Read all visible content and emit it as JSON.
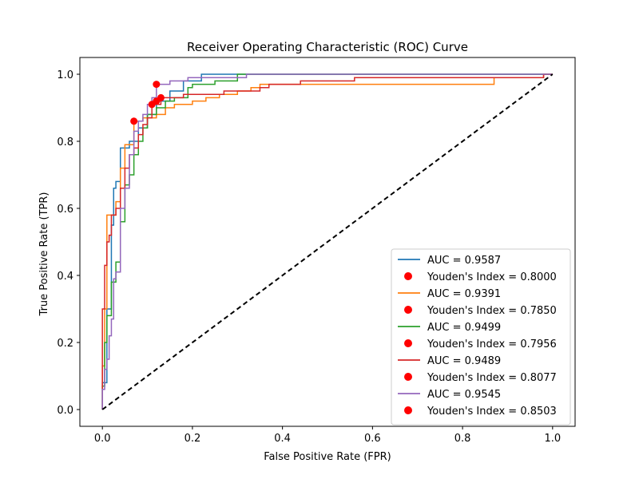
{
  "chart_data": {
    "type": "line",
    "title": "Receiver Operating Characteristic (ROC) Curve",
    "xlabel": "False Positive Rate (FPR)",
    "ylabel": "True Positive Rate (TPR)",
    "xlim": [
      -0.05,
      1.05
    ],
    "ylim": [
      -0.05,
      1.05
    ],
    "x_ticks": [
      0.0,
      0.2,
      0.4,
      0.6,
      0.8,
      1.0
    ],
    "y_ticks": [
      0.0,
      0.2,
      0.4,
      0.6,
      0.8,
      1.0
    ],
    "x_tick_labels": [
      "0.0",
      "0.2",
      "0.4",
      "0.6",
      "0.8",
      "1.0"
    ],
    "y_tick_labels": [
      "0.0",
      "0.2",
      "0.4",
      "0.6",
      "0.8",
      "1.0"
    ],
    "grid": false,
    "legend_position": "lower-right",
    "diagonal_color": "#000000",
    "marker_color": "#ff0000",
    "legend": [
      {
        "kind": "line",
        "color": "#1f77b4",
        "label": "AUC = 0.9587"
      },
      {
        "kind": "marker",
        "color": "#ff0000",
        "label": "Youden's Index = 0.8000"
      },
      {
        "kind": "line",
        "color": "#ff7f0e",
        "label": "AUC = 0.9391"
      },
      {
        "kind": "marker",
        "color": "#ff0000",
        "label": "Youden's Index = 0.7850"
      },
      {
        "kind": "line",
        "color": "#2ca02c",
        "label": "AUC = 0.9499"
      },
      {
        "kind": "marker",
        "color": "#ff0000",
        "label": "Youden's Index = 0.7956"
      },
      {
        "kind": "line",
        "color": "#d62728",
        "label": "AUC = 0.9489"
      },
      {
        "kind": "marker",
        "color": "#ff0000",
        "label": "Youden's Index = 0.8077"
      },
      {
        "kind": "line",
        "color": "#9467bd",
        "label": "AUC = 0.9545"
      },
      {
        "kind": "marker",
        "color": "#ff0000",
        "label": "Youden's Index = 0.8503"
      }
    ],
    "series": [
      {
        "color": "#1f77b4",
        "points": [
          [
            0,
            0
          ],
          [
            0,
            0.08
          ],
          [
            0.01,
            0.08
          ],
          [
            0.01,
            0.3
          ],
          [
            0.02,
            0.3
          ],
          [
            0.02,
            0.55
          ],
          [
            0.025,
            0.55
          ],
          [
            0.025,
            0.66
          ],
          [
            0.03,
            0.66
          ],
          [
            0.03,
            0.68
          ],
          [
            0.04,
            0.68
          ],
          [
            0.04,
            0.78
          ],
          [
            0.06,
            0.78
          ],
          [
            0.06,
            0.8
          ],
          [
            0.08,
            0.8
          ],
          [
            0.08,
            0.84
          ],
          [
            0.1,
            0.84
          ],
          [
            0.1,
            0.88
          ],
          [
            0.12,
            0.88
          ],
          [
            0.12,
            0.92
          ],
          [
            0.15,
            0.92
          ],
          [
            0.15,
            0.95
          ],
          [
            0.18,
            0.95
          ],
          [
            0.18,
            0.98
          ],
          [
            0.22,
            0.98
          ],
          [
            0.22,
            1.0
          ],
          [
            1.0,
            1.0
          ]
        ],
        "youden": [
          0.11,
          0.91
        ]
      },
      {
        "color": "#ff7f0e",
        "points": [
          [
            0,
            0
          ],
          [
            0,
            0.13
          ],
          [
            0.005,
            0.13
          ],
          [
            0.005,
            0.3
          ],
          [
            0.01,
            0.3
          ],
          [
            0.01,
            0.58
          ],
          [
            0.03,
            0.58
          ],
          [
            0.03,
            0.62
          ],
          [
            0.04,
            0.62
          ],
          [
            0.04,
            0.72
          ],
          [
            0.05,
            0.72
          ],
          [
            0.05,
            0.79
          ],
          [
            0.07,
            0.79
          ],
          [
            0.07,
            0.86
          ],
          [
            0.09,
            0.86
          ],
          [
            0.09,
            0.87
          ],
          [
            0.12,
            0.87
          ],
          [
            0.12,
            0.88
          ],
          [
            0.14,
            0.88
          ],
          [
            0.14,
            0.9
          ],
          [
            0.16,
            0.9
          ],
          [
            0.16,
            0.91
          ],
          [
            0.2,
            0.91
          ],
          [
            0.2,
            0.92
          ],
          [
            0.23,
            0.92
          ],
          [
            0.23,
            0.93
          ],
          [
            0.26,
            0.93
          ],
          [
            0.26,
            0.94
          ],
          [
            0.3,
            0.94
          ],
          [
            0.3,
            0.95
          ],
          [
            0.33,
            0.95
          ],
          [
            0.33,
            0.96
          ],
          [
            0.35,
            0.96
          ],
          [
            0.35,
            0.97
          ],
          [
            0.87,
            0.97
          ],
          [
            0.87,
            0.99
          ],
          [
            0.98,
            0.99
          ],
          [
            0.98,
            1.0
          ],
          [
            1.0,
            1.0
          ]
        ],
        "youden": [
          0.07,
          0.86
        ]
      },
      {
        "color": "#2ca02c",
        "points": [
          [
            0,
            0
          ],
          [
            0,
            0.07
          ],
          [
            0.005,
            0.07
          ],
          [
            0.005,
            0.2
          ],
          [
            0.01,
            0.2
          ],
          [
            0.01,
            0.28
          ],
          [
            0.02,
            0.28
          ],
          [
            0.02,
            0.38
          ],
          [
            0.03,
            0.38
          ],
          [
            0.03,
            0.44
          ],
          [
            0.04,
            0.44
          ],
          [
            0.04,
            0.56
          ],
          [
            0.05,
            0.56
          ],
          [
            0.05,
            0.67
          ],
          [
            0.06,
            0.67
          ],
          [
            0.06,
            0.7
          ],
          [
            0.07,
            0.7
          ],
          [
            0.07,
            0.76
          ],
          [
            0.08,
            0.76
          ],
          [
            0.08,
            0.8
          ],
          [
            0.09,
            0.8
          ],
          [
            0.09,
            0.84
          ],
          [
            0.1,
            0.84
          ],
          [
            0.1,
            0.88
          ],
          [
            0.12,
            0.88
          ],
          [
            0.12,
            0.9
          ],
          [
            0.14,
            0.9
          ],
          [
            0.14,
            0.92
          ],
          [
            0.16,
            0.92
          ],
          [
            0.16,
            0.93
          ],
          [
            0.19,
            0.93
          ],
          [
            0.19,
            0.96
          ],
          [
            0.2,
            0.96
          ],
          [
            0.2,
            0.97
          ],
          [
            0.25,
            0.97
          ],
          [
            0.25,
            0.98
          ],
          [
            0.3,
            0.98
          ],
          [
            0.3,
            1.0
          ],
          [
            1.0,
            1.0
          ]
        ],
        "youden": [
          0.12,
          0.92
        ]
      },
      {
        "color": "#d62728",
        "points": [
          [
            0,
            0
          ],
          [
            0,
            0.3
          ],
          [
            0.005,
            0.3
          ],
          [
            0.005,
            0.43
          ],
          [
            0.01,
            0.43
          ],
          [
            0.01,
            0.5
          ],
          [
            0.015,
            0.5
          ],
          [
            0.015,
            0.52
          ],
          [
            0.02,
            0.52
          ],
          [
            0.02,
            0.58
          ],
          [
            0.03,
            0.58
          ],
          [
            0.03,
            0.6
          ],
          [
            0.04,
            0.6
          ],
          [
            0.04,
            0.66
          ],
          [
            0.05,
            0.66
          ],
          [
            0.05,
            0.72
          ],
          [
            0.06,
            0.72
          ],
          [
            0.06,
            0.76
          ],
          [
            0.07,
            0.76
          ],
          [
            0.07,
            0.78
          ],
          [
            0.08,
            0.78
          ],
          [
            0.08,
            0.82
          ],
          [
            0.09,
            0.82
          ],
          [
            0.09,
            0.85
          ],
          [
            0.1,
            0.85
          ],
          [
            0.1,
            0.87
          ],
          [
            0.11,
            0.87
          ],
          [
            0.11,
            0.91
          ],
          [
            0.13,
            0.91
          ],
          [
            0.13,
            0.93
          ],
          [
            0.18,
            0.93
          ],
          [
            0.18,
            0.94
          ],
          [
            0.27,
            0.94
          ],
          [
            0.27,
            0.95
          ],
          [
            0.35,
            0.95
          ],
          [
            0.35,
            0.96
          ],
          [
            0.37,
            0.96
          ],
          [
            0.37,
            0.97
          ],
          [
            0.44,
            0.97
          ],
          [
            0.44,
            0.98
          ],
          [
            0.56,
            0.98
          ],
          [
            0.56,
            0.99
          ],
          [
            0.98,
            0.99
          ],
          [
            0.98,
            1.0
          ],
          [
            1.0,
            1.0
          ]
        ],
        "youden": [
          0.13,
          0.93
        ]
      },
      {
        "color": "#9467bd",
        "points": [
          [
            0,
            0
          ],
          [
            0,
            0.06
          ],
          [
            0.005,
            0.06
          ],
          [
            0.005,
            0.12
          ],
          [
            0.01,
            0.12
          ],
          [
            0.01,
            0.15
          ],
          [
            0.015,
            0.15
          ],
          [
            0.015,
            0.22
          ],
          [
            0.02,
            0.22
          ],
          [
            0.02,
            0.27
          ],
          [
            0.025,
            0.27
          ],
          [
            0.025,
            0.39
          ],
          [
            0.03,
            0.39
          ],
          [
            0.03,
            0.41
          ],
          [
            0.04,
            0.41
          ],
          [
            0.04,
            0.6
          ],
          [
            0.05,
            0.6
          ],
          [
            0.05,
            0.66
          ],
          [
            0.06,
            0.66
          ],
          [
            0.06,
            0.76
          ],
          [
            0.07,
            0.76
          ],
          [
            0.07,
            0.83
          ],
          [
            0.08,
            0.83
          ],
          [
            0.08,
            0.86
          ],
          [
            0.09,
            0.86
          ],
          [
            0.09,
            0.88
          ],
          [
            0.1,
            0.88
          ],
          [
            0.1,
            0.91
          ],
          [
            0.11,
            0.91
          ],
          [
            0.11,
            0.93
          ],
          [
            0.12,
            0.93
          ],
          [
            0.12,
            0.97
          ],
          [
            0.15,
            0.97
          ],
          [
            0.15,
            0.98
          ],
          [
            0.19,
            0.98
          ],
          [
            0.19,
            0.99
          ],
          [
            0.32,
            0.99
          ],
          [
            0.32,
            1.0
          ],
          [
            1.0,
            1.0
          ]
        ],
        "youden": [
          0.12,
          0.97
        ]
      }
    ],
    "diagonal": [
      [
        0,
        0
      ],
      [
        1,
        1
      ]
    ]
  }
}
